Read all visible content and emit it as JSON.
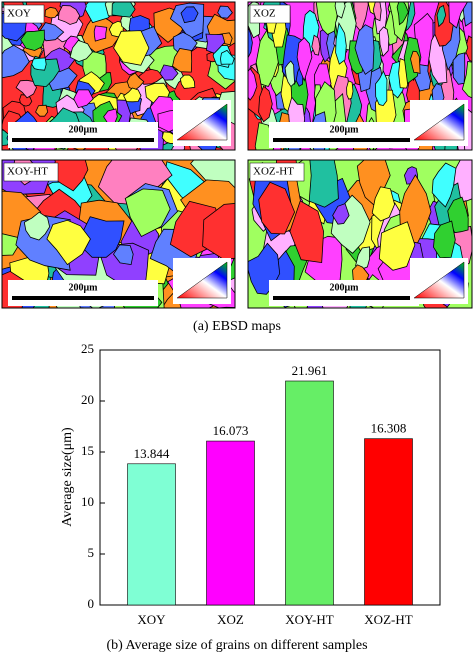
{
  "ebsd_maps": {
    "panels": [
      {
        "label": "XOY",
        "scale": "200μm"
      },
      {
        "label": "XOZ",
        "scale": "200μm"
      },
      {
        "label": "XOY-HT",
        "scale": "200μm"
      },
      {
        "label": "XOZ-HT",
        "scale": "200μm"
      }
    ],
    "caption": "(a) EBSD maps"
  },
  "chart_data": {
    "type": "bar",
    "caption": "(b) Average size of grains on different samples",
    "y_label": "Average size(μm)",
    "categories": [
      "XOY",
      "XOZ",
      "XOY-HT",
      "XOZ-HT"
    ],
    "values": [
      13.844,
      16.073,
      21.961,
      16.308
    ],
    "colors": [
      "#7fffd4",
      "#ff00ff",
      "#66ee66",
      "#ff0000"
    ],
    "ylim": [
      0,
      25
    ],
    "yticks": [
      0,
      5,
      10,
      15,
      20,
      25
    ]
  }
}
